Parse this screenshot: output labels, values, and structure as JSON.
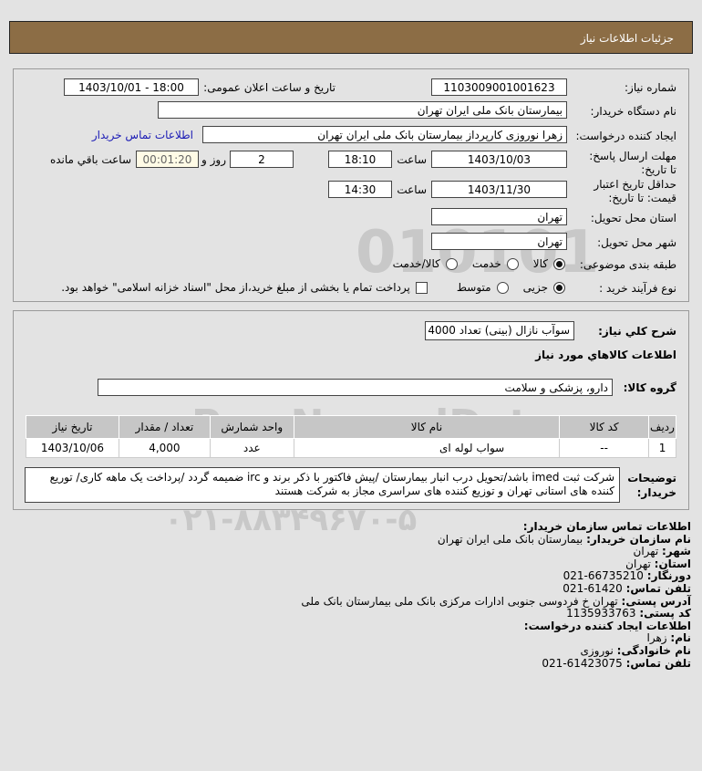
{
  "header": {
    "title": "جزئیات اطلاعات نیاز"
  },
  "form": {
    "need_number_label": "شماره نیاز:",
    "need_number": "1103009001001623",
    "announce_label": "تاریخ و ساعت اعلان عمومی:",
    "announce_value": "1403/10/01 - 18:00",
    "buyer_label": "نام دستگاه خریدار:",
    "buyer": "بیمارستان بانک ملی ایران تهران",
    "creator_label": "ایجاد کننده درخواست:",
    "creator": "زهرا نوروزی کارپرداز بیمارستان بانک ملی ایران تهران",
    "contact_link": "اطلاعات تماس خریدار",
    "deadline_label": "مهلت ارسال پاسخ: تا تاریخ:",
    "deadline_date": "1403/10/03",
    "time_label": "ساعت",
    "deadline_time": "18:10",
    "days": "2",
    "days_label": "روز و",
    "remaining": "00:01:20",
    "remaining_label": "ساعت باقي مانده",
    "validity_label": "حداقل تاریخ اعتبار قیمت: تا تاریخ:",
    "validity_date": "1403/11/30",
    "validity_time": "14:30",
    "province_label": "استان محل تحویل:",
    "province": "تهران",
    "city_label": "شهر محل تحویل:",
    "city": "تهران",
    "category_label": "طبقه بندی موضوعی:",
    "category_options": [
      "کالا",
      "خدمت",
      "کالا/خدمت"
    ],
    "category_selected": "کالا",
    "process_label": "نوع فرآیند خرید :",
    "process_options": [
      "جزیی",
      "متوسط"
    ],
    "process_selected": "جزیی",
    "payment_note": "پرداخت تمام یا بخشی از مبلغ خرید،از محل \"اسناد خزانه اسلامی\" خواهد بود.",
    "payment_checked": false
  },
  "details": {
    "summary_label": "شرح کلي نياز:",
    "summary": "سوآب نازال (بینی) تعداد 4000 عدد",
    "goods_heading": "اطلاعات کالاهاي مورد نياز",
    "group_label": "گروه کالا:",
    "group": "دارو، پزشکی و سلامت",
    "table": {
      "headers": [
        "ردیف",
        "کد کالا",
        "نام کالا",
        "واحد شمارش",
        "تعداد / مقدار",
        "تاریخ نیاز"
      ],
      "rows": [
        [
          "1",
          "--",
          "سواب لوله ای",
          "عدد",
          "4,000",
          "1403/10/06"
        ]
      ]
    },
    "notes_label": "توضیحات خریدار:",
    "notes": "شرکت ثبت imed باشد/تحویل درب انبار بیمارستان /پیش فاکتور با ذکر برند و irc ضمیمه گردد /پرداخت یک ماهه کاری/ توریع کننده های استانی تهران و توزیع کننده های سراسری مجاز به شرکت هستند"
  },
  "contact": {
    "heading": "اطلاعات تماس سازمان خریدار:",
    "org_label": "نام سازمان خریدار:",
    "org": "بیمارستان بانک ملی ایران تهران",
    "city_label": "شهر:",
    "city": "تهران",
    "province_label": "استان:",
    "province": "تهران",
    "fax_label": "دورنگار:",
    "fax": "66735210-021",
    "phone_label": "تلفن تماس:",
    "phone": "61420-021",
    "address_label": "آدرس پستی:",
    "address": "تهران خ فردوسی جنوبی ادارات مرکزی بانک ملی بیمارستان بانک ملی",
    "postal_label": "کد پستی:",
    "postal": "1135933763",
    "creator_heading": "اطلاعات ایجاد کننده درخواست:",
    "name_label": "نام:",
    "name": "زهرا",
    "family_label": "نام خانوادگی:",
    "family": "نوروزی",
    "creator_phone_label": "تلفن تماس:",
    "creator_phone": "61423075-021"
  },
  "watermark": {
    "brand": "ParsNamadData",
    "phone": "۰۲۱-۸۸۳۴۹۶۷۰-۵"
  },
  "colors": {
    "header_bg": "#8c6d45",
    "link": "#1a1ab5",
    "remaining_bg": "#fffbe6"
  }
}
